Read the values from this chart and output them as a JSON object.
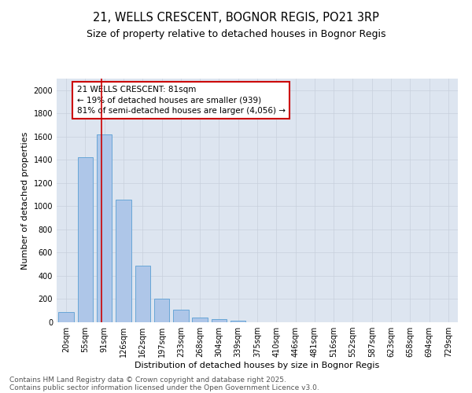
{
  "title1": "21, WELLS CRESCENT, BOGNOR REGIS, PO21 3RP",
  "title2": "Size of property relative to detached houses in Bognor Regis",
  "xlabel": "Distribution of detached houses by size in Bognor Regis",
  "ylabel": "Number of detached properties",
  "categories": [
    "20sqm",
    "55sqm",
    "91sqm",
    "126sqm",
    "162sqm",
    "197sqm",
    "233sqm",
    "268sqm",
    "304sqm",
    "339sqm",
    "375sqm",
    "410sqm",
    "446sqm",
    "481sqm",
    "516sqm",
    "552sqm",
    "587sqm",
    "623sqm",
    "658sqm",
    "694sqm",
    "729sqm"
  ],
  "values": [
    85,
    1420,
    1620,
    1055,
    490,
    200,
    110,
    38,
    25,
    15,
    0,
    0,
    0,
    0,
    0,
    0,
    0,
    0,
    0,
    0,
    0
  ],
  "bar_color": "#aec6e8",
  "bar_edge_color": "#5a9fd4",
  "vline_color": "#cc0000",
  "vline_x_index": 1.85,
  "annotation_text": "21 WELLS CRESCENT: 81sqm\n← 19% of detached houses are smaller (939)\n81% of semi-detached houses are larger (4,056) →",
  "annotation_box_facecolor": "#ffffff",
  "annotation_box_edgecolor": "#cc0000",
  "ylim": [
    0,
    2100
  ],
  "yticks": [
    0,
    200,
    400,
    600,
    800,
    1000,
    1200,
    1400,
    1600,
    1800,
    2000
  ],
  "grid_color": "#c8d0dc",
  "bg_color": "#dde5f0",
  "footer1": "Contains HM Land Registry data © Crown copyright and database right 2025.",
  "footer2": "Contains public sector information licensed under the Open Government Licence v3.0.",
  "title_fontsize": 10.5,
  "subtitle_fontsize": 9,
  "axis_label_fontsize": 8,
  "tick_fontsize": 7,
  "annotation_fontsize": 7.5,
  "footer_fontsize": 6.5
}
